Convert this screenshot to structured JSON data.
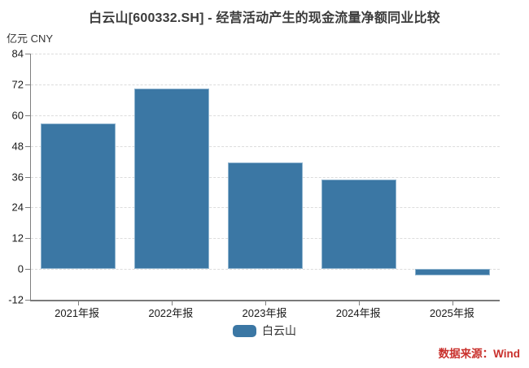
{
  "chart_data": {
    "type": "bar",
    "title": "白云山[600332.SH] - 经营活动产生的现金流量净额同业比较",
    "unit_label": "亿元 CNY",
    "categories": [
      "2021年报",
      "2022年报",
      "2023年报",
      "2024年报",
      "2025年报"
    ],
    "series": [
      {
        "name": "白云山",
        "color": "#3b77a4",
        "values": [
          56.9,
          70.4,
          41.4,
          34.9,
          -2.5
        ]
      }
    ],
    "ylim": [
      -12,
      84
    ],
    "yticks": [
      84,
      72,
      60,
      48,
      36,
      24,
      12,
      0,
      -12
    ],
    "grid": "horizontal-dashed",
    "legend_position": "bottom"
  },
  "footer": {
    "source_label": "数据来源：Wind"
  },
  "colors": {
    "bar": "#3b77a4",
    "bar_edge": "#8fb4cf",
    "source_text": "#c9302c",
    "title_text": "#3b3b3b",
    "axis_line": "#7f7f7f",
    "gridline": "#dcdcdc"
  }
}
